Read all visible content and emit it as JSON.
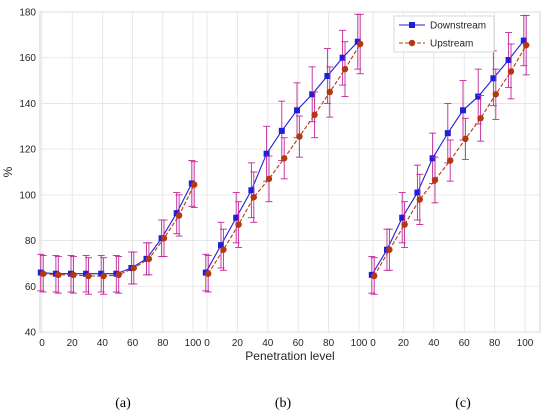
{
  "chart_data": {
    "type": "line",
    "ylabel": "%",
    "xlabel": "Penetration level",
    "ylim": [
      40,
      180
    ],
    "yticks": [
      40,
      60,
      80,
      100,
      120,
      140,
      160,
      180
    ],
    "xticks": [
      0,
      20,
      40,
      60,
      80,
      100
    ],
    "grid": true,
    "legend_position": "top-right",
    "colors": {
      "downstream": "#1f1fd6",
      "upstream": "#b5370f",
      "error_bar": "#c0259a"
    },
    "panels": [
      {
        "label": "(a)",
        "x": [
          0,
          10,
          20,
          30,
          40,
          50,
          60,
          70,
          80,
          90,
          100
        ],
        "series": [
          {
            "name": "Downstream",
            "values": [
              66,
              65.5,
              65.5,
              65.5,
              65.5,
              65.5,
              68,
              72,
              81,
              92,
              105
            ],
            "err": [
              8,
              8,
              8,
              8,
              8,
              8,
              7,
              7,
              8,
              9,
              10
            ]
          },
          {
            "name": "Upstream",
            "values": [
              65.5,
              65,
              65,
              64.5,
              64.5,
              65,
              68,
              72,
              81,
              91,
              104.5
            ],
            "err": [
              8,
              8,
              8,
              8,
              8,
              8,
              7,
              7,
              8,
              9,
              10
            ]
          }
        ]
      },
      {
        "label": "(b)",
        "x": [
          0,
          10,
          20,
          30,
          40,
          50,
          60,
          70,
          80,
          90,
          100
        ],
        "series": [
          {
            "name": "Downstream",
            "values": [
              66,
              78,
              90,
              102,
              118,
              128,
              137,
              144,
              152,
              160,
              167
            ],
            "err": [
              8,
              10,
              11,
              12,
              12,
              13,
              12,
              12,
              12,
              12,
              12
            ]
          },
          {
            "name": "Upstream",
            "values": [
              65.5,
              76,
              87,
              99,
              107,
              116,
              125.5,
              135,
              145,
              155,
              166
            ],
            "err": [
              8,
              9,
              10,
              11,
              10,
              9,
              9,
              10,
              11,
              12,
              13
            ]
          }
        ]
      },
      {
        "label": "(c)",
        "x": [
          0,
          10,
          20,
          30,
          40,
          50,
          60,
          70,
          80,
          90,
          100
        ],
        "series": [
          {
            "name": "Downstream",
            "values": [
              65,
              76,
              90,
              101,
              116,
              127,
              137,
              143,
              151,
              159,
              167.5
            ],
            "err": [
              8,
              9,
              11,
              12,
              11,
              13,
              13,
              12,
              12,
              12,
              11
            ]
          },
          {
            "name": "Upstream",
            "values": [
              64.5,
              76,
              87,
              98,
              106.5,
              115,
              124.5,
              133.5,
              144,
              154,
              165.5
            ],
            "err": [
              8,
              9,
              10,
              11,
              10,
              9,
              9,
              10,
              11,
              12,
              13
            ]
          }
        ]
      }
    ]
  }
}
